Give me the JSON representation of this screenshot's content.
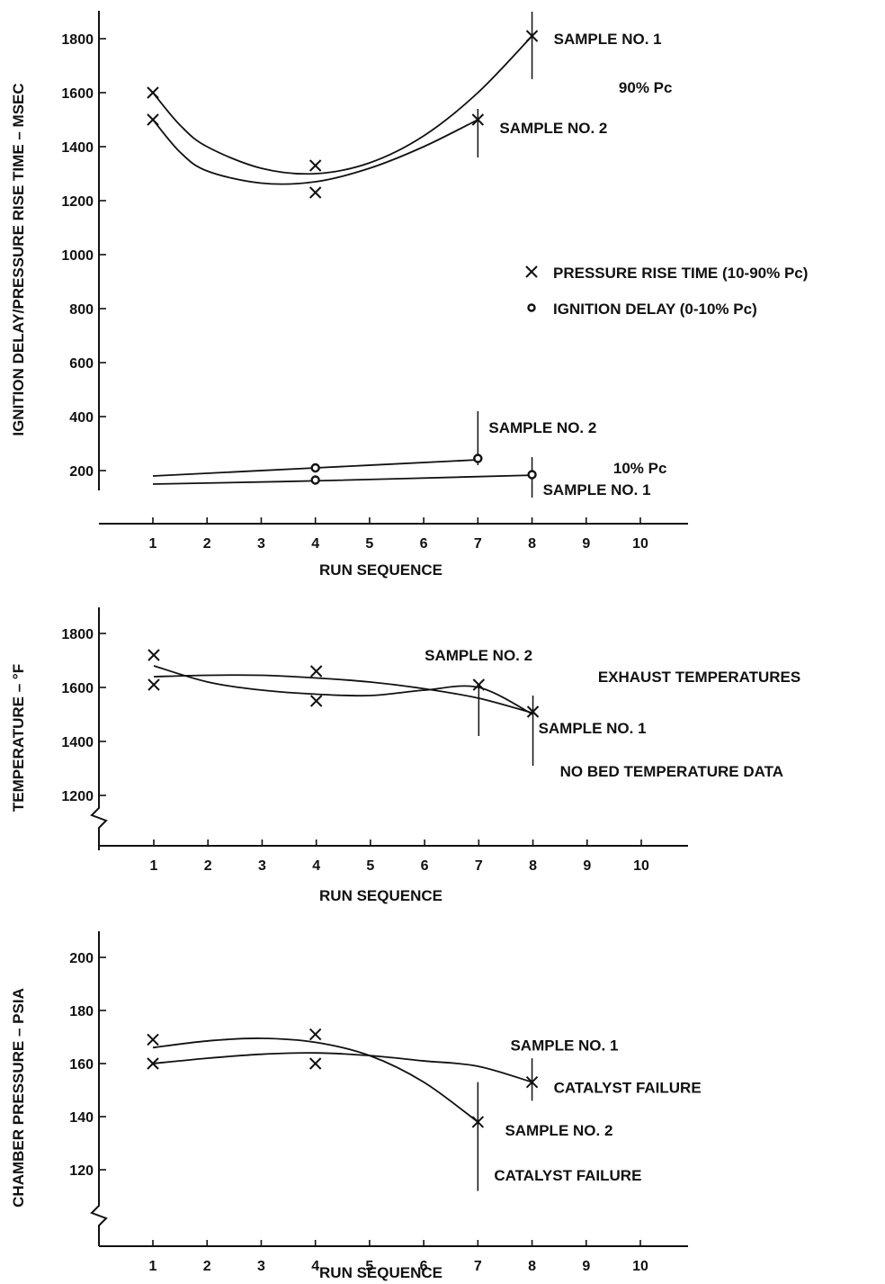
{
  "chart_data": [
    {
      "type": "line",
      "xlabel": "RUN SEQUENCE",
      "ylabel": "IGNITION DELAY/PRESSURE RISE TIME – MSEC",
      "xticks": [
        1,
        2,
        3,
        4,
        5,
        6,
        7,
        8,
        9,
        10
      ],
      "yticks": [
        200,
        400,
        600,
        800,
        1000,
        1200,
        1400,
        1600,
        1800
      ],
      "xlim": [
        0,
        11
      ],
      "ylim": [
        100,
        1900
      ],
      "legend": [
        {
          "marker": "x",
          "label": "PRESSURE RISE TIME (10-90% Pc)"
        },
        {
          "marker": "o",
          "label": "IGNITION DELAY (0-10% Pc)"
        }
      ],
      "series": [
        {
          "marker": "x",
          "x": [
            1,
            4,
            8
          ],
          "y": [
            1600,
            1330,
            1810
          ]
        },
        {
          "marker": "x",
          "x": [
            1,
            4,
            7
          ],
          "y": [
            1500,
            1230,
            1500
          ]
        },
        {
          "marker": "o",
          "x": [
            4,
            7
          ],
          "y": [
            210,
            245
          ]
        },
        {
          "marker": "o",
          "x": [
            4,
            8
          ],
          "y": [
            165,
            185
          ]
        }
      ],
      "annotations": [
        {
          "text": "SAMPLE NO. 1",
          "x": 8.4,
          "y": 1800
        },
        {
          "text": "90% Pc",
          "x": 9.6,
          "y": 1620
        },
        {
          "text": "SAMPLE NO. 2",
          "x": 7.4,
          "y": 1470
        },
        {
          "text": "SAMPLE NO. 2",
          "x": 7.2,
          "y": 360
        },
        {
          "text": "10% Pc",
          "x": 9.5,
          "y": 210
        },
        {
          "text": "SAMPLE NO. 1",
          "x": 8.2,
          "y": 130
        }
      ]
    },
    {
      "type": "line",
      "xlabel": "RUN SEQUENCE",
      "ylabel": "TEMPERATURE – °F",
      "xticks": [
        1,
        2,
        3,
        4,
        5,
        6,
        7,
        8,
        9,
        10
      ],
      "yticks": [
        1200,
        1400,
        1600,
        1800
      ],
      "xlim": [
        0,
        11
      ],
      "ylim": [
        1000,
        1900
      ],
      "series": [
        {
          "marker": "x",
          "x": [
            1,
            4,
            8
          ],
          "y": [
            1720,
            1550,
            1510
          ]
        },
        {
          "marker": "x",
          "x": [
            1,
            4,
            7
          ],
          "y": [
            1610,
            1660,
            1610
          ]
        }
      ],
      "annotations": [
        {
          "text": "SAMPLE NO. 2",
          "x": 6.0,
          "y": 1720
        },
        {
          "text": "EXHAUST TEMPERATURES",
          "x": 9.2,
          "y": 1640
        },
        {
          "text": "SAMPLE NO. 1",
          "x": 8.1,
          "y": 1450
        },
        {
          "text": "NO BED TEMPERATURE DATA",
          "x": 8.5,
          "y": 1290
        }
      ]
    },
    {
      "type": "line",
      "xlabel": "RUN SEQUENCE",
      "ylabel": "CHAMBER PRESSURE – PSIA",
      "xticks": [
        1,
        2,
        3,
        4,
        5,
        6,
        7,
        8,
        9,
        10
      ],
      "yticks": [
        120,
        140,
        160,
        180,
        200
      ],
      "xlim": [
        0,
        11
      ],
      "ylim": [
        100,
        210
      ],
      "series": [
        {
          "marker": "x",
          "x": [
            1,
            4,
            8
          ],
          "y": [
            160,
            160,
            153
          ]
        },
        {
          "marker": "x",
          "x": [
            1,
            4,
            7
          ],
          "y": [
            169,
            171,
            138
          ]
        }
      ],
      "annotations": [
        {
          "text": "SAMPLE NO. 1",
          "x": 7.6,
          "y": 167
        },
        {
          "text": "CATALYST FAILURE",
          "x": 8.4,
          "y": 151
        },
        {
          "text": "SAMPLE NO. 2",
          "x": 7.5,
          "y": 135
        },
        {
          "text": "CATALYST FAILURE",
          "x": 7.3,
          "y": 118
        }
      ]
    }
  ]
}
